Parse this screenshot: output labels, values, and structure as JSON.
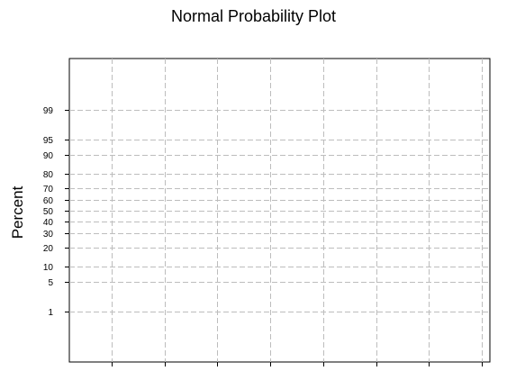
{
  "chart_data": {
    "type": "scatter",
    "title": "Normal Probability Plot",
    "xlabel": "",
    "ylabel": "Percent",
    "y_scale": "normal-probability",
    "y_ticks": [
      1,
      5,
      10,
      20,
      30,
      40,
      50,
      60,
      70,
      80,
      90,
      95,
      99
    ],
    "x_tick_count": 8,
    "x_tick_labels": [],
    "grid": true,
    "grid_style": "dashed",
    "series": []
  },
  "colors": {
    "grid": "#bdbdbd",
    "axis": "#000000",
    "background": "#ffffff"
  }
}
